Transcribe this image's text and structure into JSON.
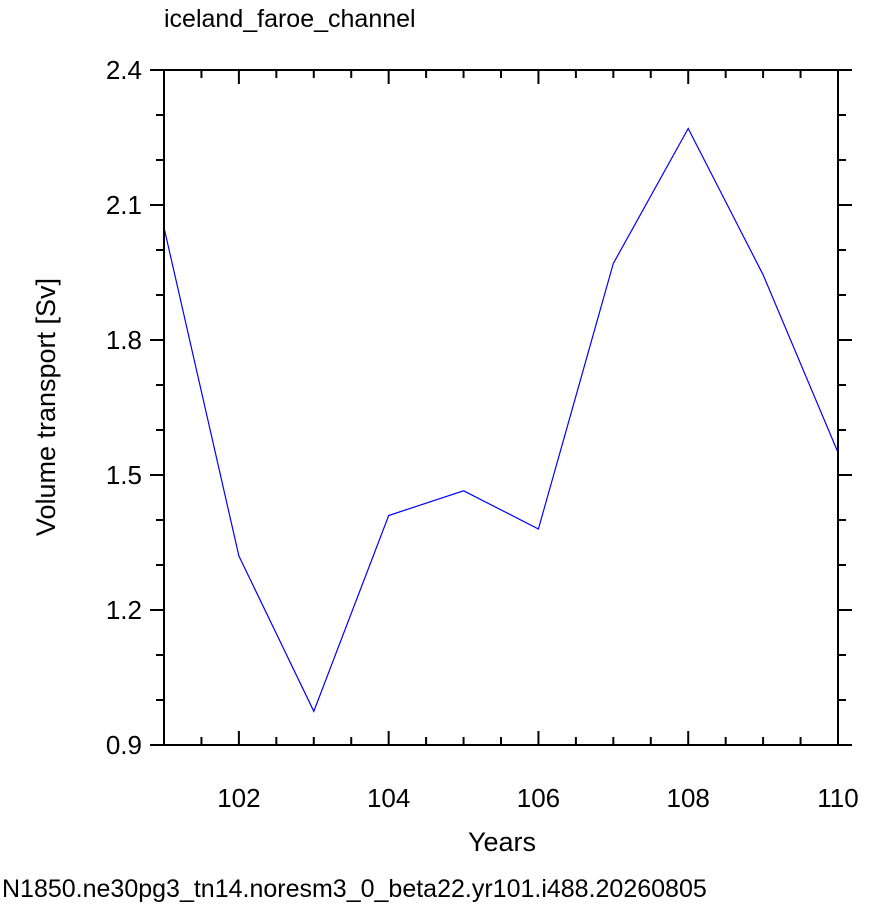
{
  "chart_data": {
    "type": "line",
    "title": "iceland_faroe_channel",
    "xlabel": "Years",
    "ylabel": "Volume transport [Sv]",
    "xlim": [
      101,
      110
    ],
    "ylim": [
      0.9,
      2.4
    ],
    "x_ticks": [
      102,
      104,
      106,
      108,
      110
    ],
    "y_ticks": [
      0.9,
      1.2,
      1.5,
      1.8,
      2.1,
      2.4
    ],
    "y_tick_labels": [
      "0.9",
      "1.2",
      "1.5",
      "1.8",
      "2.1",
      "2.4"
    ],
    "x_minor_step": 0.5,
    "y_minor_step": 0.1,
    "grid": false,
    "series": [
      {
        "color": "#0000ff",
        "x": [
          101,
          102,
          103,
          104,
          105,
          106,
          107,
          108,
          109,
          110
        ],
        "y": [
          2.05,
          1.32,
          0.975,
          1.41,
          1.465,
          1.38,
          1.97,
          2.27,
          1.945,
          1.55
        ]
      }
    ]
  },
  "footer": {
    "case_name": "N1850.ne30pg3_tn14.noresm3_0_beta22.yr101.i488.20260805",
    "color": "#0000ff"
  }
}
